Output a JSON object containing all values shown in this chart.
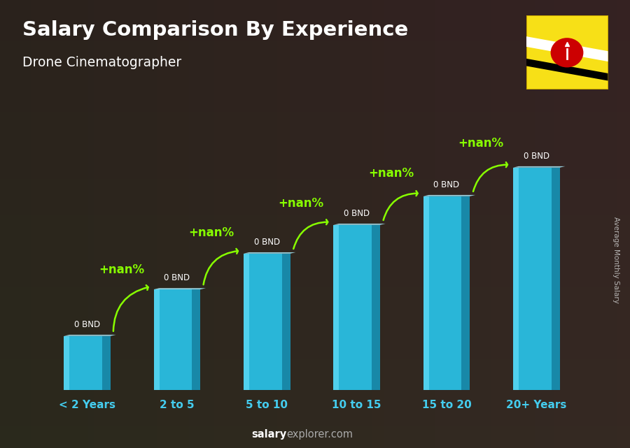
{
  "title": "Salary Comparison By Experience",
  "subtitle": "Drone Cinematographer",
  "categories": [
    "< 2 Years",
    "2 to 5",
    "5 to 10",
    "10 to 15",
    "15 to 20",
    "20+ Years"
  ],
  "bar_labels": [
    "0 BND",
    "0 BND",
    "0 BND",
    "0 BND",
    "0 BND",
    "0 BND"
  ],
  "pct_labels": [
    "+nan%",
    "+nan%",
    "+nan%",
    "+nan%",
    "+nan%"
  ],
  "ylabel": "Average Monthly Salary",
  "footer_bold": "salary",
  "footer_normal": "explorer.com",
  "bg_dark": "#3a3028",
  "bar_color_main": "#29b6d8",
  "bar_color_light": "#55d4f0",
  "bar_color_dark": "#1580a0",
  "bar_color_top": "#aaeeff",
  "pct_color": "#88ff00",
  "title_color": "#ffffff",
  "subtitle_color": "#ffffff",
  "bar_label_color": "#ffffff",
  "xlabel_color": "#44ccee",
  "ylabel_color": "#cccccc",
  "footer_bold_color": "#ffffff",
  "footer_normal_color": "#aaaaaa",
  "relative_heights": [
    1.5,
    2.8,
    3.8,
    4.6,
    5.4,
    6.2
  ],
  "ylim_max": 7.5,
  "bar_width": 0.52,
  "flag_yellow": "#F7E017",
  "flag_white": "#ffffff",
  "flag_black": "#000000",
  "flag_red": "#CC0001"
}
